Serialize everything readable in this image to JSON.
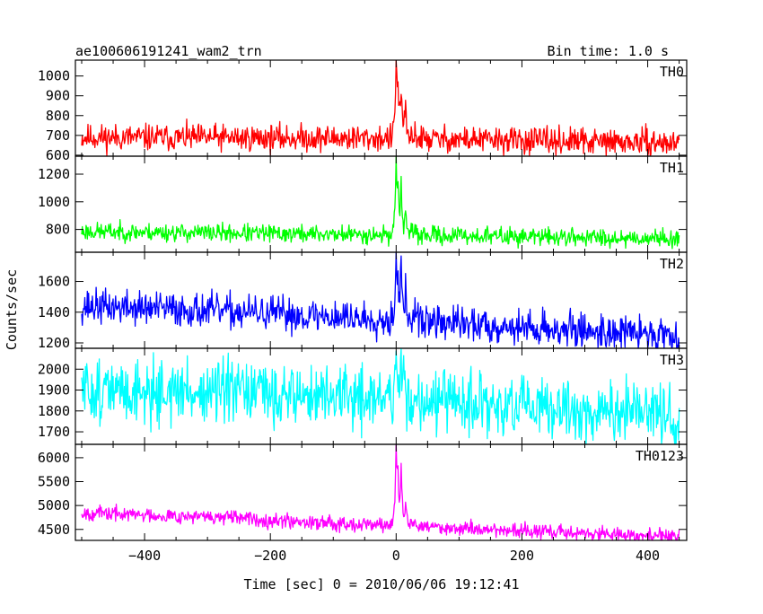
{
  "header": {
    "title": "ae100606191241_wam2_trn",
    "bin_time": "Bin time: 1.0 s"
  },
  "chart_data": {
    "type": "line",
    "xlabel": "Time [sec] 0 = 2010/06/06 19:12:41",
    "ylabel": "Counts/sec",
    "xlim": [
      -510,
      462
    ],
    "x_ticks": [
      -400,
      -200,
      0,
      200,
      400
    ],
    "x_range": [
      -500,
      450
    ],
    "series": [
      {
        "name": "TH0",
        "color": "#ff0000",
        "ylim": [
          595,
          1080
        ],
        "y_ticks": [
          600,
          700,
          800,
          900,
          1000
        ],
        "baseline": [
          [
            -500,
            690
          ],
          [
            0,
            685
          ],
          [
            450,
            660
          ]
        ],
        "noise": 33,
        "events": [
          [
            0,
            1070
          ],
          [
            3,
            900
          ],
          [
            8,
            940
          ],
          [
            15,
            830
          ],
          [
            30,
            730
          ]
        ],
        "seed": 11
      },
      {
        "name": "TH1",
        "color": "#00ff00",
        "ylim": [
          635,
          1330
        ],
        "y_ticks": [
          800,
          1000,
          1200
        ],
        "baseline": [
          [
            -500,
            785
          ],
          [
            0,
            760
          ],
          [
            450,
            735
          ]
        ],
        "noise": 32,
        "events": [
          [
            0,
            1320
          ],
          [
            3,
            1000
          ],
          [
            8,
            1130
          ],
          [
            15,
            950
          ],
          [
            30,
            810
          ]
        ],
        "seed": 23
      },
      {
        "name": "TH2",
        "color": "#0000ff",
        "ylim": [
          1165,
          1790
        ],
        "y_ticks": [
          1200,
          1400,
          1600
        ],
        "baseline": [
          [
            -500,
            1440
          ],
          [
            -300,
            1410
          ],
          [
            0,
            1350
          ],
          [
            200,
            1300
          ],
          [
            450,
            1250
          ]
        ],
        "noise": 55,
        "events": [
          [
            0,
            1780
          ],
          [
            3,
            1560
          ],
          [
            8,
            1700
          ],
          [
            15,
            1520
          ],
          [
            30,
            1420
          ]
        ],
        "seed": 37
      },
      {
        "name": "TH3",
        "color": "#00ffff",
        "ylim": [
          1640,
          2100
        ],
        "y_ticks": [
          1700,
          1800,
          1900,
          2000
        ],
        "baseline": [
          [
            -500,
            1900
          ],
          [
            -200,
            1880
          ],
          [
            0,
            1860
          ],
          [
            200,
            1810
          ],
          [
            450,
            1780
          ]
        ],
        "noise": 75,
        "events": [
          [
            0,
            2090
          ],
          [
            8,
            2070
          ],
          [
            15,
            1950
          ]
        ],
        "seed": 51
      },
      {
        "name": "TH0123",
        "color": "#ff00ff",
        "ylim": [
          4270,
          6280
        ],
        "y_ticks": [
          4500,
          5000,
          5500,
          6000
        ],
        "baseline": [
          [
            -500,
            4850
          ],
          [
            -300,
            4760
          ],
          [
            0,
            4580
          ],
          [
            200,
            4470
          ],
          [
            450,
            4340
          ]
        ],
        "noise": 75,
        "events": [
          [
            0,
            6250
          ],
          [
            3,
            5300
          ],
          [
            8,
            5800
          ],
          [
            15,
            5100
          ],
          [
            30,
            4750
          ]
        ],
        "seed": 67
      }
    ]
  }
}
